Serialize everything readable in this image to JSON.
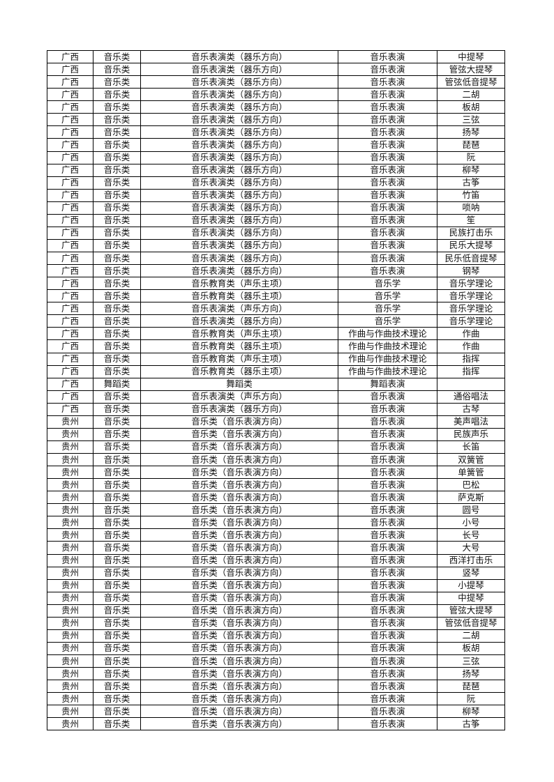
{
  "rows": [
    [
      "广西",
      "音乐类",
      "音乐表演类（器乐方向）",
      "音乐表演",
      "中提琴"
    ],
    [
      "广西",
      "音乐类",
      "音乐表演类（器乐方向）",
      "音乐表演",
      "管弦大提琴"
    ],
    [
      "广西",
      "音乐类",
      "音乐表演类（器乐方向）",
      "音乐表演",
      "管弦低音提琴"
    ],
    [
      "广西",
      "音乐类",
      "音乐表演类（器乐方向）",
      "音乐表演",
      "二胡"
    ],
    [
      "广西",
      "音乐类",
      "音乐表演类（器乐方向）",
      "音乐表演",
      "板胡"
    ],
    [
      "广西",
      "音乐类",
      "音乐表演类（器乐方向）",
      "音乐表演",
      "三弦"
    ],
    [
      "广西",
      "音乐类",
      "音乐表演类（器乐方向）",
      "音乐表演",
      "扬琴"
    ],
    [
      "广西",
      "音乐类",
      "音乐表演类（器乐方向）",
      "音乐表演",
      "琵琶"
    ],
    [
      "广西",
      "音乐类",
      "音乐表演类（器乐方向）",
      "音乐表演",
      "阮"
    ],
    [
      "广西",
      "音乐类",
      "音乐表演类（器乐方向）",
      "音乐表演",
      "柳琴"
    ],
    [
      "广西",
      "音乐类",
      "音乐表演类（器乐方向）",
      "音乐表演",
      "古筝"
    ],
    [
      "广西",
      "音乐类",
      "音乐表演类（器乐方向）",
      "音乐表演",
      "竹笛"
    ],
    [
      "广西",
      "音乐类",
      "音乐表演类（器乐方向）",
      "音乐表演",
      "唢呐"
    ],
    [
      "广西",
      "音乐类",
      "音乐表演类（器乐方向）",
      "音乐表演",
      "笙"
    ],
    [
      "广西",
      "音乐类",
      "音乐表演类（器乐方向）",
      "音乐表演",
      "民族打击乐"
    ],
    [
      "广西",
      "音乐类",
      "音乐表演类（器乐方向）",
      "音乐表演",
      "民乐大提琴"
    ],
    [
      "广西",
      "音乐类",
      "音乐表演类（器乐方向）",
      "音乐表演",
      "民乐低音提琴"
    ],
    [
      "广西",
      "音乐类",
      "音乐表演类（器乐方向）",
      "音乐表演",
      "钢琴"
    ],
    [
      "广西",
      "音乐类",
      "音乐教育类（声乐主项）",
      "音乐学",
      "音乐学理论"
    ],
    [
      "广西",
      "音乐类",
      "音乐教育类（器乐主项）",
      "音乐学",
      "音乐学理论"
    ],
    [
      "广西",
      "音乐类",
      "音乐表演类（声乐方向）",
      "音乐学",
      "音乐学理论"
    ],
    [
      "广西",
      "音乐类",
      "音乐表演类（器乐方向）",
      "音乐学",
      "音乐学理论"
    ],
    [
      "广西",
      "音乐类",
      "音乐教育类（声乐主项）",
      "作曲与作曲技术理论",
      "作曲"
    ],
    [
      "广西",
      "音乐类",
      "音乐教育类（器乐主项）",
      "作曲与作曲技术理论",
      "作曲"
    ],
    [
      "广西",
      "音乐类",
      "音乐教育类（声乐主项）",
      "作曲与作曲技术理论",
      "指挥"
    ],
    [
      "广西",
      "音乐类",
      "音乐教育类（器乐主项）",
      "作曲与作曲技术理论",
      "指挥"
    ],
    [
      "广西",
      "舞蹈类",
      "舞蹈类",
      "舞蹈表演",
      ""
    ],
    [
      "广西",
      "音乐类",
      "音乐表演类（声乐方向）",
      "音乐表演",
      "通俗唱法"
    ],
    [
      "广西",
      "音乐类",
      "音乐表演类（器乐方向）",
      "音乐表演",
      "古琴"
    ],
    [
      "贵州",
      "音乐类",
      "音乐类（音乐表演方向）",
      "音乐表演",
      "美声唱法"
    ],
    [
      "贵州",
      "音乐类",
      "音乐类（音乐表演方向）",
      "音乐表演",
      "民族声乐"
    ],
    [
      "贵州",
      "音乐类",
      "音乐类（音乐表演方向）",
      "音乐表演",
      "长笛"
    ],
    [
      "贵州",
      "音乐类",
      "音乐类（音乐表演方向）",
      "音乐表演",
      "双簧管"
    ],
    [
      "贵州",
      "音乐类",
      "音乐类（音乐表演方向）",
      "音乐表演",
      "单簧管"
    ],
    [
      "贵州",
      "音乐类",
      "音乐类（音乐表演方向）",
      "音乐表演",
      "巴松"
    ],
    [
      "贵州",
      "音乐类",
      "音乐类（音乐表演方向）",
      "音乐表演",
      "萨克斯"
    ],
    [
      "贵州",
      "音乐类",
      "音乐类（音乐表演方向）",
      "音乐表演",
      "圆号"
    ],
    [
      "贵州",
      "音乐类",
      "音乐类（音乐表演方向）",
      "音乐表演",
      "小号"
    ],
    [
      "贵州",
      "音乐类",
      "音乐类（音乐表演方向）",
      "音乐表演",
      "长号"
    ],
    [
      "贵州",
      "音乐类",
      "音乐类（音乐表演方向）",
      "音乐表演",
      "大号"
    ],
    [
      "贵州",
      "音乐类",
      "音乐类（音乐表演方向）",
      "音乐表演",
      "西洋打击乐"
    ],
    [
      "贵州",
      "音乐类",
      "音乐类（音乐表演方向）",
      "音乐表演",
      "竖琴"
    ],
    [
      "贵州",
      "音乐类",
      "音乐类（音乐表演方向）",
      "音乐表演",
      "小提琴"
    ],
    [
      "贵州",
      "音乐类",
      "音乐类（音乐表演方向）",
      "音乐表演",
      "中提琴"
    ],
    [
      "贵州",
      "音乐类",
      "音乐类（音乐表演方向）",
      "音乐表演",
      "管弦大提琴"
    ],
    [
      "贵州",
      "音乐类",
      "音乐类（音乐表演方向）",
      "音乐表演",
      "管弦低音提琴"
    ],
    [
      "贵州",
      "音乐类",
      "音乐类（音乐表演方向）",
      "音乐表演",
      "二胡"
    ],
    [
      "贵州",
      "音乐类",
      "音乐类（音乐表演方向）",
      "音乐表演",
      "板胡"
    ],
    [
      "贵州",
      "音乐类",
      "音乐类（音乐表演方向）",
      "音乐表演",
      "三弦"
    ],
    [
      "贵州",
      "音乐类",
      "音乐类（音乐表演方向）",
      "音乐表演",
      "扬琴"
    ],
    [
      "贵州",
      "音乐类",
      "音乐类（音乐表演方向）",
      "音乐表演",
      "琵琶"
    ],
    [
      "贵州",
      "音乐类",
      "音乐类（音乐表演方向）",
      "音乐表演",
      "阮"
    ],
    [
      "贵州",
      "音乐类",
      "音乐类（音乐表演方向）",
      "音乐表演",
      "柳琴"
    ],
    [
      "贵州",
      "音乐类",
      "音乐类（音乐表演方向）",
      "音乐表演",
      "古筝"
    ]
  ]
}
